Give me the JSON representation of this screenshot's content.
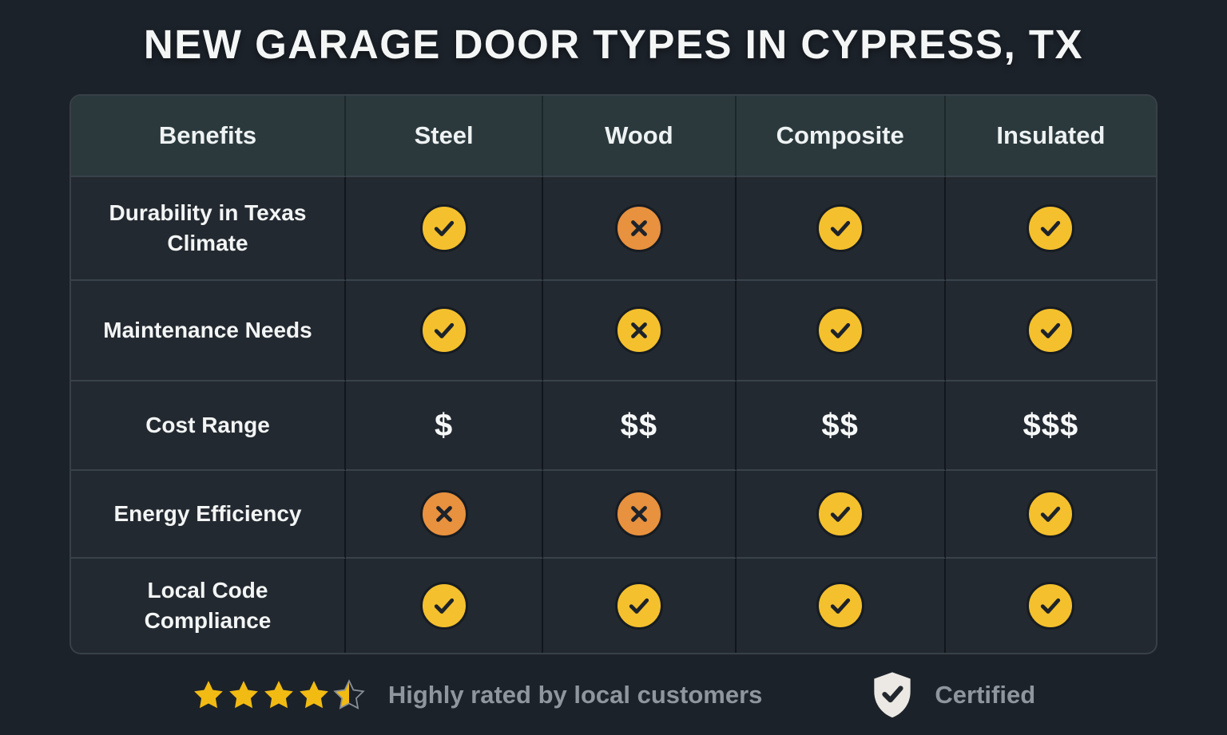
{
  "title": "NEW GARAGE DOOR TYPES IN CYPRESS, TX",
  "colors": {
    "background": "#1c222a",
    "header_bg": "#2b393d",
    "cell_bg": "#232930",
    "check_yellow": "#f4c02d",
    "cross_orange": "#e8913e",
    "icon_glyph": "#1e232a",
    "star_gold": "#f2bb13",
    "muted_text": "#8f969d",
    "shield_white": "#ece9e4"
  },
  "chart_data": {
    "type": "table",
    "title": "New Garage Door Types in Cypress, TX",
    "columns": [
      "Benefits",
      "Steel",
      "Wood",
      "Composite",
      "Insulated"
    ],
    "rows": [
      {
        "label": "Durability in Texas Climate",
        "kind": "icons",
        "values": [
          "check",
          "cross",
          "check",
          "check"
        ],
        "variants": [
          "yellow",
          "orange",
          "yellow",
          "yellow"
        ]
      },
      {
        "label": "Maintenance Needs",
        "kind": "icons",
        "values": [
          "check",
          "cross",
          "check",
          "check"
        ],
        "variants": [
          "yellow",
          "yellow",
          "yellow",
          "yellow"
        ]
      },
      {
        "label": "Cost Range",
        "kind": "text",
        "values": [
          "$",
          "$$",
          "$$",
          "$$$"
        ]
      },
      {
        "label": "Energy Efficiency",
        "kind": "icons",
        "values": [
          "cross",
          "cross",
          "check",
          "check"
        ],
        "variants": [
          "orange",
          "orange",
          "yellow",
          "yellow"
        ]
      },
      {
        "label": "Local Code Compliance",
        "kind": "icons",
        "values": [
          "check",
          "check",
          "check",
          "check"
        ],
        "variants": [
          "yellow",
          "yellow",
          "yellow",
          "yellow"
        ]
      }
    ]
  },
  "footer": {
    "rating_stars": 4.5,
    "rating_stars_total": 5,
    "rating_text": "Highly rated by local customers",
    "certified_text": "Certified"
  }
}
